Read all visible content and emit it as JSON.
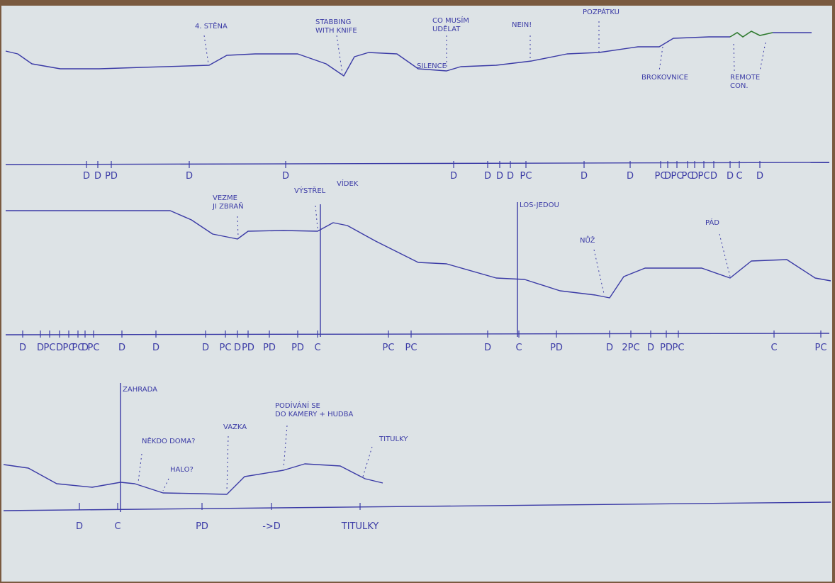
{
  "rows": [
    {
      "annotations": [
        {
          "lines": [
            "4. STĚNA"
          ]
        },
        {
          "lines": [
            "STABBING",
            "WITH KNIFE"
          ]
        },
        {
          "lines": [
            "CO MUSÍM",
            "UDĚLAT"
          ]
        },
        {
          "lines": [
            "NEIN!"
          ]
        },
        {
          "lines": [
            "POZPÁTKU"
          ]
        },
        {
          "lines": [
            "SILENCE"
          ]
        },
        {
          "lines": [
            "BROKOVNICE"
          ]
        },
        {
          "lines": [
            "REMOTE",
            "CON."
          ]
        }
      ],
      "axis_labels": [
        "D",
        "D",
        "PD",
        "D",
        "D",
        "D",
        "D",
        "D",
        "D",
        "PC",
        "D",
        "D",
        "PC",
        "D",
        "PC",
        "PC",
        "D",
        "PC",
        "D",
        "D",
        "C",
        "D"
      ]
    },
    {
      "annotations": [
        {
          "lines": [
            "VEZME",
            "JI ZBRAŇ"
          ]
        },
        {
          "lines": [
            "VÝSTŘEL"
          ]
        },
        {
          "lines": [
            "VÍDEK"
          ]
        },
        {
          "lines": [
            "LOS-JEDOU"
          ]
        },
        {
          "lines": [
            "NŮŽ"
          ]
        },
        {
          "lines": [
            "PÁD"
          ]
        }
      ],
      "axis_labels": [
        "D",
        "D",
        "PC",
        "D",
        "PC",
        "PC",
        "D",
        "PC",
        "D",
        "D",
        "D",
        "PC",
        "D",
        "PD",
        "PD",
        "PD",
        "C",
        "PC",
        "PC",
        "D",
        "C",
        "PD",
        "D",
        "2PC",
        "D",
        "PD",
        "PC",
        "C",
        "PC"
      ]
    },
    {
      "annotations": [
        {
          "lines": [
            "ZAHRADA"
          ]
        },
        {
          "lines": [
            "NĚKDO DOMA?"
          ]
        },
        {
          "lines": [
            "HALO?"
          ]
        },
        {
          "lines": [
            "VAZKA"
          ]
        },
        {
          "lines": [
            "PODÍVÁNÍ SE",
            "DO KAMERY + HUDBA"
          ]
        },
        {
          "lines": [
            "TITULKY"
          ]
        }
      ],
      "axis_labels": [
        "D",
        "C",
        "PD",
        "->D",
        "TITULKY"
      ]
    }
  ]
}
